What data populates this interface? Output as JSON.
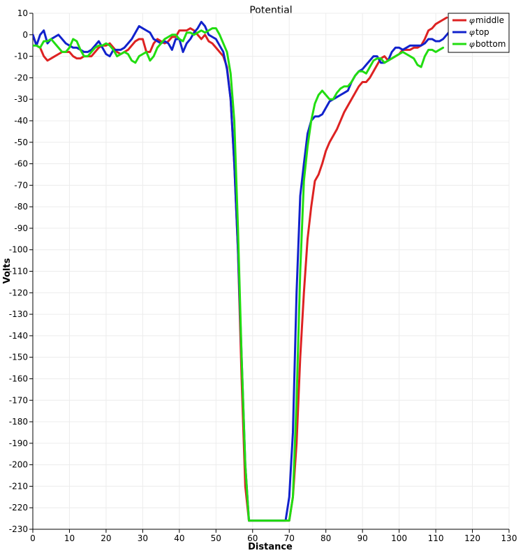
{
  "chart_data": {
    "type": "line",
    "title": "Potential",
    "xlabel": "Distance",
    "ylabel": "Volts",
    "xlim": [
      0,
      130
    ],
    "ylim": [
      -230,
      10
    ],
    "xticks": [
      0,
      10,
      20,
      30,
      40,
      50,
      60,
      70,
      80,
      90,
      100,
      110,
      120,
      130
    ],
    "yticks": [
      10,
      0,
      -10,
      -20,
      -30,
      -40,
      -50,
      -60,
      -70,
      -80,
      -90,
      -100,
      -110,
      -120,
      -130,
      -140,
      -150,
      -160,
      -170,
      -180,
      -190,
      -200,
      -210,
      -220,
      -230
    ],
    "grid": true,
    "legend_position": "top-right",
    "legend_symbol": "φ",
    "series": [
      {
        "name": "middle",
        "color": "#dd2222",
        "x": [
          0,
          1,
          2,
          3,
          4,
          5,
          6,
          7,
          8,
          9,
          10,
          11,
          12,
          13,
          14,
          15,
          16,
          17,
          18,
          19,
          20,
          21,
          22,
          23,
          24,
          25,
          26,
          27,
          28,
          29,
          30,
          31,
          32,
          33,
          34,
          35,
          36,
          37,
          38,
          39,
          40,
          41,
          42,
          43,
          44,
          45,
          46,
          47,
          48,
          49,
          50,
          51,
          52,
          53,
          54,
          55,
          56,
          57,
          58,
          59,
          60,
          62,
          64,
          66,
          68,
          69,
          70,
          71,
          72,
          73,
          74,
          75,
          76,
          77,
          78,
          79,
          80,
          81,
          82,
          83,
          84,
          85,
          86,
          87,
          88,
          89,
          90,
          91,
          92,
          93,
          94,
          95,
          96,
          97,
          98,
          99,
          100,
          101,
          102,
          103,
          104,
          105,
          106,
          107,
          108,
          109,
          110,
          111,
          112,
          113
        ],
        "y": [
          0,
          -5,
          -6,
          -10,
          -12,
          -11,
          -10,
          -9,
          -8,
          -8,
          -8,
          -10,
          -11,
          -11,
          -10,
          -10,
          -10,
          -8,
          -6,
          -5,
          -5,
          -4,
          -6,
          -8,
          -9,
          -8,
          -7,
          -5,
          -3,
          -2,
          -2,
          -8,
          -8,
          -4,
          -2,
          -3,
          -4,
          -3,
          -1,
          -1,
          2,
          2,
          2,
          3,
          2,
          0,
          -2,
          0,
          -3,
          -4,
          -6,
          -8,
          -10,
          -15,
          -30,
          -60,
          -100,
          -160,
          -210,
          -226,
          -226,
          -226,
          -226,
          -226,
          -226,
          -226,
          -226,
          -215,
          -190,
          -150,
          -120,
          -95,
          -80,
          -68,
          -65,
          -60,
          -54,
          -50,
          -47,
          -44,
          -40,
          -36,
          -33,
          -30,
          -27,
          -24,
          -22,
          -22,
          -20,
          -17,
          -14,
          -11,
          -10,
          -12,
          -11,
          -10,
          -9,
          -7,
          -7,
          -7,
          -6,
          -6,
          -5,
          -2,
          2,
          3,
          5,
          6,
          7,
          8
        ]
      },
      {
        "name": "top",
        "color": "#1122cc",
        "x": [
          0,
          1,
          2,
          3,
          4,
          5,
          6,
          7,
          8,
          9,
          10,
          11,
          12,
          13,
          14,
          15,
          16,
          17,
          18,
          19,
          20,
          21,
          22,
          23,
          24,
          25,
          26,
          27,
          28,
          29,
          30,
          31,
          32,
          33,
          34,
          35,
          36,
          37,
          38,
          39,
          40,
          41,
          42,
          43,
          44,
          45,
          46,
          47,
          48,
          49,
          50,
          51,
          52,
          53,
          54,
          55,
          56,
          57,
          58,
          59,
          60,
          62,
          64,
          66,
          68,
          69,
          70,
          71,
          72,
          73,
          74,
          75,
          76,
          77,
          78,
          79,
          80,
          81,
          82,
          83,
          84,
          85,
          86,
          87,
          88,
          89,
          90,
          91,
          92,
          93,
          94,
          95,
          96,
          97,
          98,
          99,
          100,
          101,
          102,
          103,
          104,
          105,
          106,
          107,
          108,
          109,
          110,
          111,
          112,
          113,
          114,
          115,
          116,
          117,
          118
        ],
        "y": [
          0,
          -5,
          0,
          2,
          -4,
          -2,
          -1,
          0,
          -2,
          -4,
          -5,
          -6,
          -6,
          -7,
          -8,
          -8,
          -7,
          -5,
          -3,
          -6,
          -9,
          -10,
          -7,
          -7,
          -7,
          -6,
          -4,
          -2,
          1,
          4,
          3,
          2,
          1,
          -2,
          -3,
          -4,
          -3,
          -4,
          -7,
          -2,
          -2,
          -8,
          -4,
          -2,
          1,
          3,
          6,
          4,
          0,
          -1,
          -2,
          -5,
          -8,
          -16,
          -30,
          -60,
          -100,
          -150,
          -200,
          -226,
          -226,
          -226,
          -226,
          -226,
          -226,
          -226,
          -215,
          -185,
          -120,
          -75,
          -60,
          -46,
          -40,
          -38,
          -38,
          -37,
          -34,
          -31,
          -30,
          -29,
          -28,
          -27,
          -26,
          -22,
          -19,
          -17,
          -16,
          -14,
          -12,
          -10,
          -10,
          -13,
          -13,
          -12,
          -8,
          -6,
          -6,
          -7,
          -6,
          -5,
          -5,
          -5,
          -5,
          -4,
          -2,
          -2,
          -3,
          -3,
          -2,
          0,
          2,
          3,
          2,
          2,
          2
        ]
      },
      {
        "name": "bottom",
        "color": "#22dd11",
        "x": [
          0,
          1,
          2,
          3,
          4,
          5,
          6,
          7,
          8,
          9,
          10,
          11,
          12,
          13,
          14,
          15,
          16,
          17,
          18,
          19,
          20,
          21,
          22,
          23,
          24,
          25,
          26,
          27,
          28,
          29,
          30,
          31,
          32,
          33,
          34,
          35,
          36,
          37,
          38,
          39,
          40,
          41,
          42,
          43,
          44,
          45,
          46,
          47,
          48,
          49,
          50,
          51,
          52,
          53,
          54,
          55,
          56,
          57,
          58,
          59,
          60,
          62,
          64,
          66,
          68,
          69,
          70,
          71,
          72,
          73,
          74,
          75,
          76,
          77,
          78,
          79,
          80,
          81,
          82,
          83,
          84,
          85,
          86,
          87,
          88,
          89,
          90,
          91,
          92,
          93,
          94,
          95,
          96,
          97,
          98,
          99,
          100,
          101,
          102,
          103,
          104,
          105,
          106,
          107,
          108,
          109,
          110,
          111,
          112
        ],
        "y": [
          -5,
          -5,
          -6,
          -3,
          -3,
          -2,
          -4,
          -6,
          -8,
          -8,
          -6,
          -2,
          -3,
          -7,
          -10,
          -10,
          -8,
          -6,
          -5,
          -5,
          -4,
          -5,
          -7,
          -10,
          -9,
          -8,
          -9,
          -12,
          -13,
          -10,
          -9,
          -8,
          -12,
          -10,
          -6,
          -4,
          -2,
          -1,
          0,
          0,
          -2,
          -3,
          1,
          1,
          0,
          1,
          2,
          1,
          2,
          3,
          3,
          0,
          -4,
          -8,
          -18,
          -40,
          -90,
          -150,
          -200,
          -226,
          -226,
          -226,
          -226,
          -226,
          -226,
          -226,
          -226,
          -215,
          -170,
          -110,
          -68,
          -52,
          -40,
          -32,
          -28,
          -26,
          -28,
          -30,
          -30,
          -27,
          -25,
          -24,
          -24,
          -22,
          -19,
          -17,
          -17,
          -18,
          -15,
          -12,
          -11,
          -11,
          -13,
          -12,
          -11,
          -10,
          -9,
          -8,
          -9,
          -10,
          -11,
          -14,
          -15,
          -10,
          -7,
          -7,
          -8,
          -7,
          -6
        ]
      }
    ]
  }
}
